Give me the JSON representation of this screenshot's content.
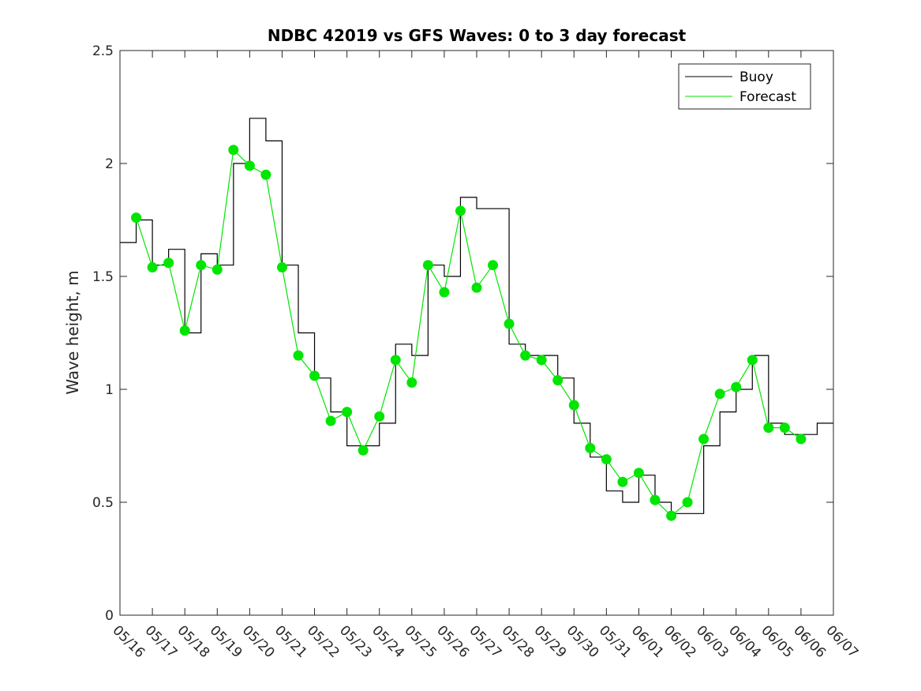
{
  "chart_data": {
    "type": "line",
    "title": "NDBC 42019 vs GFS Waves: 0 to 3 day forecast",
    "xlabel": "",
    "ylabel": "Wave height, m",
    "xlim": [
      "05/16",
      "06/07"
    ],
    "ylim": [
      0,
      2.5
    ],
    "x_ticks": [
      "05/16",
      "05/17",
      "05/18",
      "05/19",
      "05/20",
      "05/21",
      "05/22",
      "05/23",
      "05/24",
      "05/25",
      "05/26",
      "05/27",
      "05/28",
      "05/29",
      "05/30",
      "05/31",
      "06/01",
      "06/02",
      "06/03",
      "06/04",
      "06/05",
      "06/06",
      "06/07"
    ],
    "y_ticks": [
      "0",
      "0.5",
      "1",
      "1.5",
      "2",
      "2.5"
    ],
    "grid": false,
    "legend": {
      "position": "top-right",
      "entries": [
        "Buoy",
        "Forecast"
      ]
    },
    "colors": {
      "buoy": "#000000",
      "forecast": "#00e600"
    },
    "series": [
      {
        "name": "Buoy",
        "x": [
          "05/16",
          "05/16 12:00",
          "05/17",
          "05/17 12:00",
          "05/18",
          "05/18 12:00",
          "05/19",
          "05/19 12:00",
          "05/20",
          "05/20 12:00",
          "05/21",
          "05/21 12:00",
          "05/22",
          "05/22 12:00",
          "05/23",
          "05/23 12:00",
          "05/24",
          "05/24 12:00",
          "05/25",
          "05/25 12:00",
          "05/26",
          "05/26 12:00",
          "05/27",
          "05/27 12:00",
          "05/28",
          "05/28 12:00",
          "05/29",
          "05/29 12:00",
          "05/30",
          "05/30 12:00",
          "05/31",
          "05/31 12:00",
          "06/01",
          "06/01 12:00",
          "06/02",
          "06/02 12:00",
          "06/03",
          "06/03 12:00",
          "06/04",
          "06/04 12:00",
          "06/05",
          "06/05 12:00",
          "06/06",
          "06/06 12:00"
        ],
        "values": [
          1.65,
          1.75,
          1.55,
          1.62,
          1.25,
          1.6,
          1.55,
          2.0,
          2.2,
          2.1,
          1.55,
          1.25,
          1.05,
          0.9,
          0.75,
          0.75,
          0.85,
          1.2,
          1.15,
          1.55,
          1.5,
          1.85,
          1.8,
          1.8,
          1.2,
          1.15,
          1.15,
          1.05,
          0.85,
          0.7,
          0.55,
          0.5,
          0.62,
          0.5,
          0.45,
          0.45,
          0.75,
          0.9,
          1.0,
          1.15,
          0.85,
          0.8,
          0.8,
          0.85
        ]
      },
      {
        "name": "Forecast",
        "x": [
          "05/16 12:00",
          "05/17",
          "05/17 12:00",
          "05/18",
          "05/18 12:00",
          "05/19",
          "05/19 12:00",
          "05/20",
          "05/20 12:00",
          "05/21",
          "05/21 12:00",
          "05/22",
          "05/22 12:00",
          "05/23",
          "05/23 12:00",
          "05/24",
          "05/24 12:00",
          "05/25",
          "05/25 12:00",
          "05/26",
          "05/26 12:00",
          "05/27",
          "05/27 12:00",
          "05/28",
          "05/28 12:00",
          "05/29",
          "05/29 12:00",
          "05/30",
          "05/30 12:00",
          "05/31",
          "05/31 12:00",
          "06/01",
          "06/01 12:00",
          "06/02",
          "06/02 12:00",
          "06/03",
          "06/03 12:00",
          "06/04",
          "06/04 12:00",
          "06/05",
          "06/05 12:00",
          "06/06"
        ],
        "values": [
          1.76,
          1.54,
          1.56,
          1.26,
          1.55,
          1.53,
          2.06,
          1.99,
          1.95,
          1.54,
          1.15,
          1.06,
          0.86,
          0.9,
          0.73,
          0.88,
          1.13,
          1.03,
          1.55,
          1.43,
          1.79,
          1.45,
          1.55,
          1.29,
          1.15,
          1.13,
          1.04,
          0.93,
          0.74,
          0.69,
          0.59,
          0.63,
          0.51,
          0.44,
          0.5,
          0.78,
          0.98,
          1.01,
          1.13,
          0.83,
          0.83,
          0.78
        ]
      }
    ]
  }
}
